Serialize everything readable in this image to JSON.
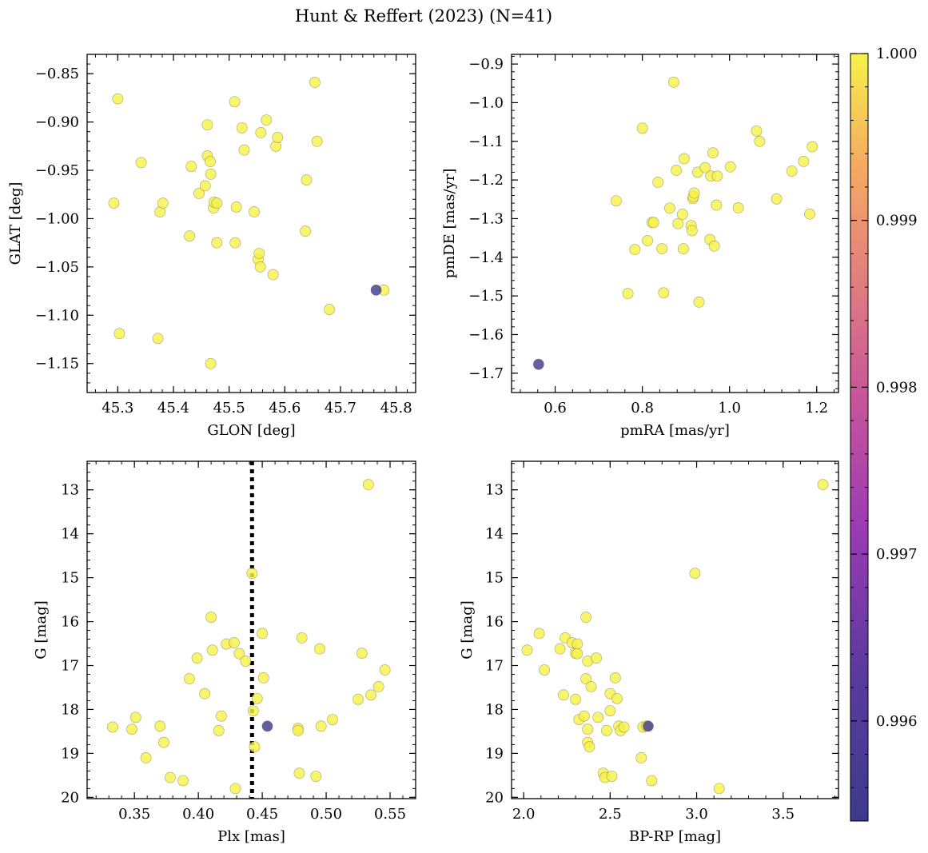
{
  "figure": {
    "title": "Hunt & Reffert (2023) (N=41)"
  },
  "colorbar": {
    "range": [
      0.9954,
      1.0
    ],
    "ticks": [
      0.996,
      0.997,
      0.998,
      0.999,
      1.0
    ],
    "tick_labels": [
      "0.996",
      "0.997",
      "0.998",
      "0.999",
      "1.000"
    ],
    "colormap": "plasma"
  },
  "chart_data": [
    {
      "type": "scatter",
      "id": "glon-glat",
      "xlabel": "GLON [deg]",
      "ylabel": "GLAT [deg]",
      "xlim": [
        45.245,
        45.835
      ],
      "ylim": [
        -1.18,
        -0.83
      ],
      "y_inverted": false,
      "xticks": [
        45.3,
        45.4,
        45.5,
        45.6,
        45.7,
        45.8
      ],
      "xtick_labels": [
        "45.3",
        "45.4",
        "45.5",
        "45.6",
        "45.7",
        "45.8"
      ],
      "yticks": [
        -0.85,
        -0.9,
        -0.95,
        -1.0,
        -1.05,
        -1.1,
        -1.15
      ],
      "ytick_labels": [
        "−0.85",
        "−0.90",
        "−0.95",
        "−1.00",
        "−1.05",
        "−1.10",
        "−1.15"
      ],
      "points": [
        {
          "x": 45.3,
          "y": -0.876,
          "p": 1.0
        },
        {
          "x": 45.293,
          "y": -0.984,
          "p": 1.0
        },
        {
          "x": 45.303,
          "y": -1.119,
          "p": 1.0
        },
        {
          "x": 45.342,
          "y": -0.942,
          "p": 1.0
        },
        {
          "x": 45.372,
          "y": -1.124,
          "p": 1.0
        },
        {
          "x": 45.376,
          "y": -0.993,
          "p": 1.0
        },
        {
          "x": 45.381,
          "y": -0.984,
          "p": 1.0
        },
        {
          "x": 45.429,
          "y": -1.018,
          "p": 1.0
        },
        {
          "x": 45.432,
          "y": -0.946,
          "p": 1.0
        },
        {
          "x": 45.446,
          "y": -0.974,
          "p": 1.0
        },
        {
          "x": 45.457,
          "y": -0.966,
          "p": 1.0
        },
        {
          "x": 45.461,
          "y": -0.903,
          "p": 1.0
        },
        {
          "x": 45.461,
          "y": -0.935,
          "p": 1.0
        },
        {
          "x": 45.466,
          "y": -0.941,
          "p": 1.0
        },
        {
          "x": 45.467,
          "y": -0.954,
          "p": 1.0
        },
        {
          "x": 45.467,
          "y": -1.15,
          "p": 1.0
        },
        {
          "x": 45.472,
          "y": -0.989,
          "p": 1.0
        },
        {
          "x": 45.473,
          "y": -0.983,
          "p": 1.0
        },
        {
          "x": 45.478,
          "y": -0.984,
          "p": 1.0
        },
        {
          "x": 45.478,
          "y": -1.025,
          "p": 1.0
        },
        {
          "x": 45.51,
          "y": -0.879,
          "p": 1.0
        },
        {
          "x": 45.511,
          "y": -1.025,
          "p": 1.0
        },
        {
          "x": 45.513,
          "y": -0.988,
          "p": 1.0
        },
        {
          "x": 45.523,
          "y": -0.906,
          "p": 1.0
        },
        {
          "x": 45.527,
          "y": -0.929,
          "p": 1.0
        },
        {
          "x": 45.545,
          "y": -0.993,
          "p": 1.0
        },
        {
          "x": 45.552,
          "y": -1.042,
          "p": 1.0
        },
        {
          "x": 45.554,
          "y": -1.036,
          "p": 1.0
        },
        {
          "x": 45.556,
          "y": -1.05,
          "p": 1.0
        },
        {
          "x": 45.557,
          "y": -0.911,
          "p": 1.0
        },
        {
          "x": 45.567,
          "y": -0.898,
          "p": 1.0
        },
        {
          "x": 45.579,
          "y": -1.058,
          "p": 1.0
        },
        {
          "x": 45.584,
          "y": -0.925,
          "p": 1.0
        },
        {
          "x": 45.587,
          "y": -0.916,
          "p": 1.0
        },
        {
          "x": 45.637,
          "y": -1.013,
          "p": 1.0
        },
        {
          "x": 45.639,
          "y": -0.96,
          "p": 1.0
        },
        {
          "x": 45.654,
          "y": -0.859,
          "p": 1.0
        },
        {
          "x": 45.658,
          "y": -0.92,
          "p": 1.0
        },
        {
          "x": 45.68,
          "y": -1.094,
          "p": 1.0
        },
        {
          "x": 45.778,
          "y": -1.074,
          "p": 1.0
        },
        {
          "x": 45.764,
          "y": -1.074,
          "p": 0.9955
        }
      ]
    },
    {
      "type": "scatter",
      "id": "pmra-pmde",
      "xlabel": "pmRA [mas/yr]",
      "ylabel": "pmDE [mas/yr]",
      "xlim": [
        0.5,
        1.25
      ],
      "ylim": [
        -1.75,
        -0.875
      ],
      "y_inverted": false,
      "xticks": [
        0.6,
        0.8,
        1.0,
        1.2
      ],
      "xtick_labels": [
        "0.6",
        "0.8",
        "1.0",
        "1.2"
      ],
      "yticks": [
        -0.9,
        -1.0,
        -1.1,
        -1.2,
        -1.3,
        -1.4,
        -1.5,
        -1.6,
        -1.7
      ],
      "ytick_labels": [
        "−0.9",
        "−1.0",
        "−1.1",
        "−1.2",
        "−1.3",
        "−1.4",
        "−1.5",
        "−1.6",
        "−1.7"
      ],
      "points": [
        {
          "x": 0.872,
          "y": -0.947,
          "p": 1.0
        },
        {
          "x": 0.8,
          "y": -1.066,
          "p": 1.0
        },
        {
          "x": 0.74,
          "y": -1.254,
          "p": 1.0
        },
        {
          "x": 0.767,
          "y": -1.494,
          "p": 1.0
        },
        {
          "x": 0.783,
          "y": -1.38,
          "p": 1.0
        },
        {
          "x": 0.812,
          "y": -1.357,
          "p": 1.0
        },
        {
          "x": 0.822,
          "y": -1.31,
          "p": 1.0
        },
        {
          "x": 0.826,
          "y": -1.31,
          "p": 1.0
        },
        {
          "x": 0.836,
          "y": -1.206,
          "p": 1.0
        },
        {
          "x": 0.845,
          "y": -1.378,
          "p": 1.0
        },
        {
          "x": 0.849,
          "y": -1.492,
          "p": 1.0
        },
        {
          "x": 0.863,
          "y": -1.273,
          "p": 1.0
        },
        {
          "x": 0.878,
          "y": -1.175,
          "p": 1.0
        },
        {
          "x": 0.882,
          "y": -1.313,
          "p": 1.0
        },
        {
          "x": 0.892,
          "y": -1.289,
          "p": 1.0
        },
        {
          "x": 0.894,
          "y": -1.378,
          "p": 1.0
        },
        {
          "x": 0.896,
          "y": -1.145,
          "p": 1.0
        },
        {
          "x": 0.912,
          "y": -1.318,
          "p": 1.0
        },
        {
          "x": 0.914,
          "y": -1.331,
          "p": 1.0
        },
        {
          "x": 0.916,
          "y": -1.248,
          "p": 1.0
        },
        {
          "x": 0.917,
          "y": -1.243,
          "p": 1.0
        },
        {
          "x": 0.919,
          "y": -1.234,
          "p": 1.0
        },
        {
          "x": 0.927,
          "y": -1.18,
          "p": 1.0
        },
        {
          "x": 0.93,
          "y": -1.516,
          "p": 1.0
        },
        {
          "x": 0.944,
          "y": -1.168,
          "p": 1.0
        },
        {
          "x": 0.955,
          "y": -1.354,
          "p": 1.0
        },
        {
          "x": 0.957,
          "y": -1.19,
          "p": 1.0
        },
        {
          "x": 0.962,
          "y": -1.13,
          "p": 1.0
        },
        {
          "x": 0.965,
          "y": -1.371,
          "p": 1.0
        },
        {
          "x": 0.97,
          "y": -1.265,
          "p": 1.0
        },
        {
          "x": 0.972,
          "y": -1.19,
          "p": 1.0
        },
        {
          "x": 1.002,
          "y": -1.166,
          "p": 1.0
        },
        {
          "x": 1.02,
          "y": -1.272,
          "p": 1.0
        },
        {
          "x": 1.062,
          "y": -1.073,
          "p": 1.0
        },
        {
          "x": 1.069,
          "y": -1.1,
          "p": 1.0
        },
        {
          "x": 1.108,
          "y": -1.249,
          "p": 1.0
        },
        {
          "x": 1.143,
          "y": -1.177,
          "p": 1.0
        },
        {
          "x": 1.17,
          "y": -1.152,
          "p": 1.0
        },
        {
          "x": 1.184,
          "y": -1.288,
          "p": 1.0
        },
        {
          "x": 1.19,
          "y": -1.114,
          "p": 1.0
        },
        {
          "x": 0.562,
          "y": -1.677,
          "p": 0.9955
        }
      ]
    },
    {
      "type": "scatter",
      "id": "plx-g",
      "xlabel": "Plx [mas]",
      "ylabel": "G [mag]",
      "xlim": [
        0.313,
        0.57
      ],
      "ylim": [
        20.03,
        12.35
      ],
      "y_inverted": true,
      "vline": {
        "x": 0.442,
        "style": "dotted"
      },
      "xticks": [
        0.35,
        0.4,
        0.45,
        0.5,
        0.55
      ],
      "xtick_labels": [
        "0.35",
        "0.40",
        "0.45",
        "0.50",
        "0.55"
      ],
      "yticks": [
        13,
        14,
        15,
        16,
        17,
        18,
        19,
        20
      ],
      "ytick_labels": [
        "13",
        "14",
        "15",
        "16",
        "17",
        "18",
        "19",
        "20"
      ],
      "points": [
        {
          "x": 0.333,
          "y": 18.4,
          "p": 1.0
        },
        {
          "x": 0.348,
          "y": 18.45,
          "p": 1.0
        },
        {
          "x": 0.351,
          "y": 18.18,
          "p": 1.0
        },
        {
          "x": 0.359,
          "y": 19.1,
          "p": 1.0
        },
        {
          "x": 0.37,
          "y": 18.38,
          "p": 1.0
        },
        {
          "x": 0.373,
          "y": 18.75,
          "p": 1.0
        },
        {
          "x": 0.378,
          "y": 19.55,
          "p": 1.0
        },
        {
          "x": 0.388,
          "y": 19.62,
          "p": 1.0
        },
        {
          "x": 0.393,
          "y": 17.3,
          "p": 1.0
        },
        {
          "x": 0.399,
          "y": 16.83,
          "p": 1.0
        },
        {
          "x": 0.405,
          "y": 17.64,
          "p": 1.0
        },
        {
          "x": 0.41,
          "y": 15.9,
          "p": 1.0
        },
        {
          "x": 0.411,
          "y": 16.65,
          "p": 1.0
        },
        {
          "x": 0.416,
          "y": 18.48,
          "p": 1.0
        },
        {
          "x": 0.418,
          "y": 18.15,
          "p": 1.0
        },
        {
          "x": 0.422,
          "y": 16.51,
          "p": 1.0
        },
        {
          "x": 0.428,
          "y": 16.48,
          "p": 1.0
        },
        {
          "x": 0.429,
          "y": 19.8,
          "p": 1.0
        },
        {
          "x": 0.432,
          "y": 16.73,
          "p": 1.0
        },
        {
          "x": 0.437,
          "y": 16.9,
          "p": 1.0
        },
        {
          "x": 0.442,
          "y": 14.9,
          "p": 1.0
        },
        {
          "x": 0.443,
          "y": 18.03,
          "p": 1.0
        },
        {
          "x": 0.444,
          "y": 18.85,
          "p": 1.0
        },
        {
          "x": 0.446,
          "y": 17.75,
          "p": 1.0
        },
        {
          "x": 0.45,
          "y": 16.27,
          "p": 1.0
        },
        {
          "x": 0.451,
          "y": 17.28,
          "p": 1.0
        },
        {
          "x": 0.478,
          "y": 18.43,
          "p": 1.0
        },
        {
          "x": 0.478,
          "y": 18.48,
          "p": 1.0
        },
        {
          "x": 0.479,
          "y": 19.45,
          "p": 1.0
        },
        {
          "x": 0.481,
          "y": 16.37,
          "p": 1.0
        },
        {
          "x": 0.492,
          "y": 19.52,
          "p": 1.0
        },
        {
          "x": 0.495,
          "y": 16.62,
          "p": 1.0
        },
        {
          "x": 0.496,
          "y": 18.38,
          "p": 1.0
        },
        {
          "x": 0.505,
          "y": 18.23,
          "p": 1.0
        },
        {
          "x": 0.525,
          "y": 17.77,
          "p": 1.0
        },
        {
          "x": 0.528,
          "y": 16.72,
          "p": 1.0
        },
        {
          "x": 0.533,
          "y": 12.88,
          "p": 1.0
        },
        {
          "x": 0.535,
          "y": 17.67,
          "p": 1.0
        },
        {
          "x": 0.541,
          "y": 17.48,
          "p": 1.0
        },
        {
          "x": 0.546,
          "y": 17.1,
          "p": 1.0
        },
        {
          "x": 0.454,
          "y": 18.38,
          "p": 0.9955
        }
      ]
    },
    {
      "type": "scatter",
      "id": "bprp-g",
      "xlabel": "BP-RP [mag]",
      "ylabel": "G [mag]",
      "xlim": [
        1.93,
        3.82
      ],
      "ylim": [
        20.03,
        12.35
      ],
      "y_inverted": true,
      "xticks": [
        2.0,
        2.5,
        3.0,
        3.5
      ],
      "xtick_labels": [
        "2.0",
        "2.5",
        "3.0",
        "3.5"
      ],
      "yticks": [
        13,
        14,
        15,
        16,
        17,
        18,
        19,
        20
      ],
      "ytick_labels": [
        "13",
        "14",
        "15",
        "16",
        "17",
        "18",
        "19",
        "20"
      ],
      "points": [
        {
          "x": 2.02,
          "y": 16.65,
          "p": 1.0
        },
        {
          "x": 2.09,
          "y": 16.27,
          "p": 1.0
        },
        {
          "x": 2.12,
          "y": 17.1,
          "p": 1.0
        },
        {
          "x": 2.21,
          "y": 16.62,
          "p": 1.0
        },
        {
          "x": 2.23,
          "y": 17.67,
          "p": 1.0
        },
        {
          "x": 2.24,
          "y": 16.37,
          "p": 1.0
        },
        {
          "x": 2.28,
          "y": 16.48,
          "p": 1.0
        },
        {
          "x": 2.3,
          "y": 17.77,
          "p": 1.0
        },
        {
          "x": 2.3,
          "y": 16.72,
          "p": 1.0
        },
        {
          "x": 2.31,
          "y": 16.51,
          "p": 1.0
        },
        {
          "x": 2.31,
          "y": 16.73,
          "p": 1.0
        },
        {
          "x": 2.32,
          "y": 18.23,
          "p": 1.0
        },
        {
          "x": 2.35,
          "y": 18.15,
          "p": 1.0
        },
        {
          "x": 2.36,
          "y": 15.9,
          "p": 1.0
        },
        {
          "x": 2.36,
          "y": 17.3,
          "p": 1.0
        },
        {
          "x": 2.37,
          "y": 16.9,
          "p": 1.0
        },
        {
          "x": 2.37,
          "y": 18.45,
          "p": 1.0
        },
        {
          "x": 2.37,
          "y": 18.75,
          "p": 1.0
        },
        {
          "x": 2.38,
          "y": 18.85,
          "p": 1.0
        },
        {
          "x": 2.39,
          "y": 17.48,
          "p": 1.0
        },
        {
          "x": 2.42,
          "y": 16.83,
          "p": 1.0
        },
        {
          "x": 2.43,
          "y": 18.18,
          "p": 1.0
        },
        {
          "x": 2.46,
          "y": 19.45,
          "p": 1.0
        },
        {
          "x": 2.47,
          "y": 19.55,
          "p": 1.0
        },
        {
          "x": 2.48,
          "y": 18.48,
          "p": 1.0
        },
        {
          "x": 2.5,
          "y": 17.64,
          "p": 1.0
        },
        {
          "x": 2.5,
          "y": 18.03,
          "p": 1.0
        },
        {
          "x": 2.51,
          "y": 19.52,
          "p": 1.0
        },
        {
          "x": 2.53,
          "y": 17.28,
          "p": 1.0
        },
        {
          "x": 2.54,
          "y": 17.75,
          "p": 1.0
        },
        {
          "x": 2.55,
          "y": 18.38,
          "p": 1.0
        },
        {
          "x": 2.56,
          "y": 18.48,
          "p": 1.0
        },
        {
          "x": 2.58,
          "y": 18.4,
          "p": 1.0
        },
        {
          "x": 2.68,
          "y": 19.1,
          "p": 1.0
        },
        {
          "x": 2.69,
          "y": 18.4,
          "p": 1.0
        },
        {
          "x": 2.71,
          "y": 18.38,
          "p": 1.0
        },
        {
          "x": 2.74,
          "y": 19.62,
          "p": 1.0
        },
        {
          "x": 2.99,
          "y": 14.9,
          "p": 1.0
        },
        {
          "x": 3.13,
          "y": 19.8,
          "p": 1.0
        },
        {
          "x": 3.73,
          "y": 12.88,
          "p": 1.0
        },
        {
          "x": 2.72,
          "y": 18.38,
          "p": 0.9955
        }
      ]
    }
  ]
}
